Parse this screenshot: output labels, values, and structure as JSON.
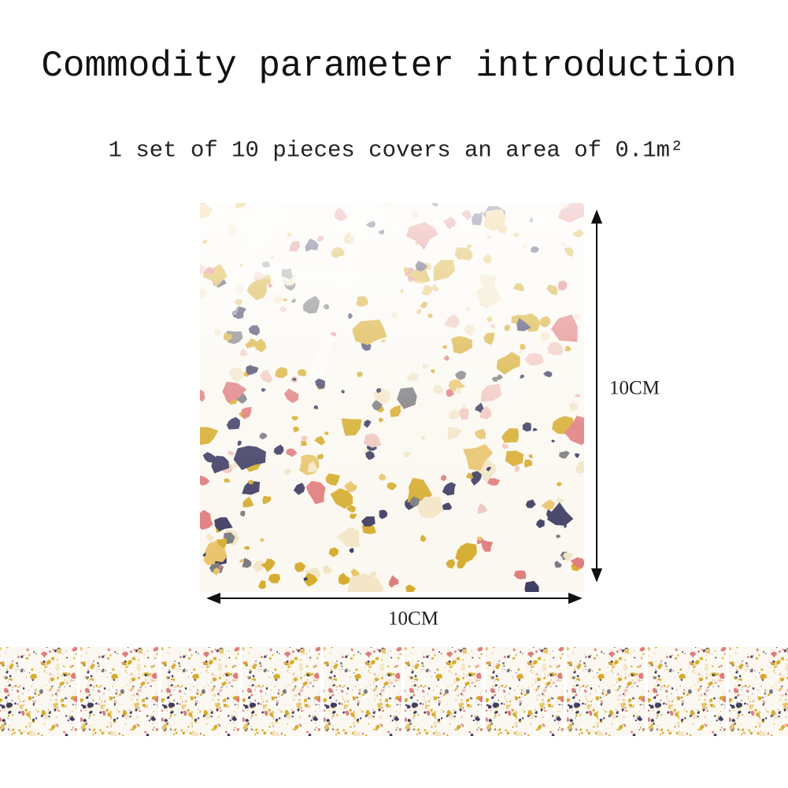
{
  "header": {
    "title": "Commodity parameter introduction",
    "subtitle": "1 set of 10 pieces covers an area of 0.1m²"
  },
  "dimensions": {
    "height_label": "10CM",
    "width_label": "10CM"
  }
}
